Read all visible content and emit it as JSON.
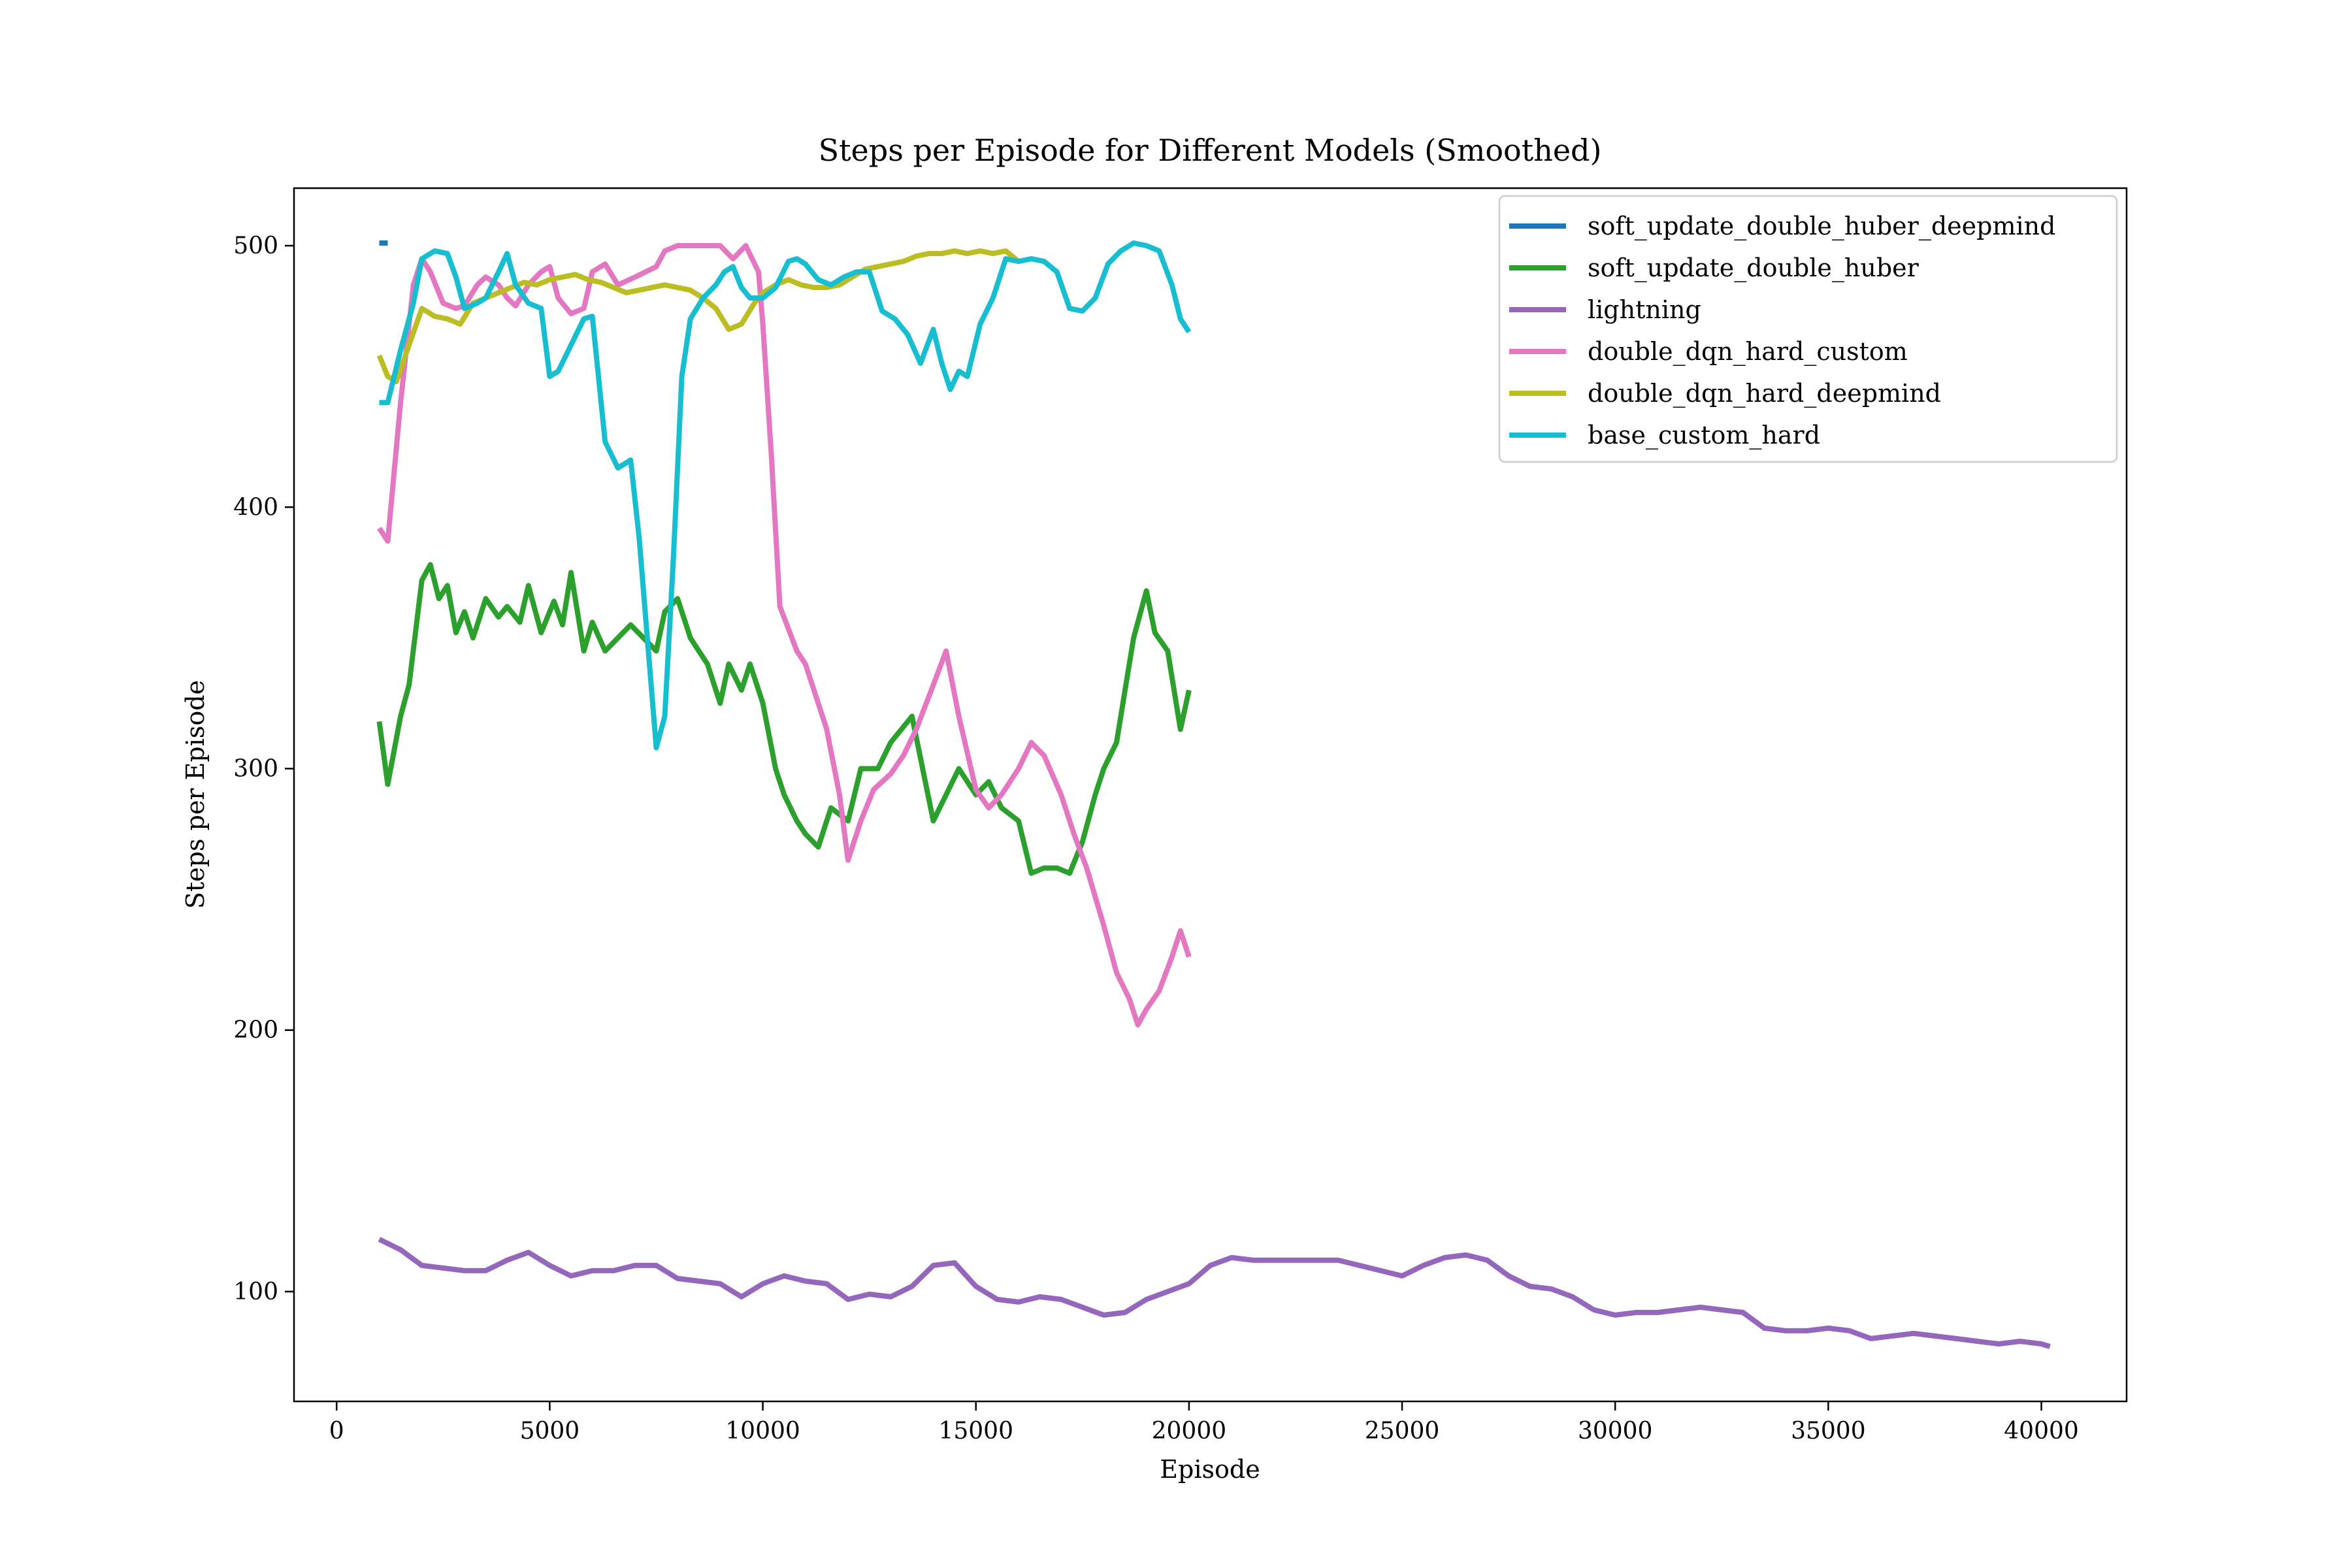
{
  "chart_data": {
    "type": "line",
    "title": "Steps per Episode for Different Models (Smoothed)",
    "xlabel": "Episode",
    "ylabel": "Steps per Episode",
    "xlim": [
      -1000,
      42000
    ],
    "ylim": [
      58,
      522
    ],
    "xticks": [
      0,
      5000,
      10000,
      15000,
      20000,
      25000,
      30000,
      35000,
      40000
    ],
    "yticks": [
      100,
      200,
      300,
      400,
      500
    ],
    "grid": false,
    "legend_position": "top-right",
    "series": [
      {
        "name": "soft_update_double_huber_deepmind",
        "color": "#1f77b4",
        "x": [
          1000,
          1200
        ],
        "y": [
          501,
          501
        ]
      },
      {
        "name": "soft_update_double_huber",
        "color": "#2ca02c",
        "x": [
          1000,
          1200,
          1500,
          1700,
          2000,
          2200,
          2400,
          2600,
          2800,
          3000,
          3200,
          3500,
          3800,
          4000,
          4300,
          4500,
          4800,
          5100,
          5300,
          5500,
          5800,
          6000,
          6300,
          6600,
          6900,
          7200,
          7500,
          7700,
          8000,
          8300,
          8500,
          8700,
          9000,
          9200,
          9500,
          9700,
          10000,
          10300,
          10500,
          10800,
          11000,
          11300,
          11600,
          12000,
          12300,
          12700,
          13000,
          13500,
          14000,
          14300,
          14600,
          15000,
          15300,
          15600,
          16000,
          16300,
          16600,
          16900,
          17200,
          17500,
          17800,
          18000,
          18300,
          18500,
          18700,
          19000,
          19200,
          19500,
          19800,
          20000
        ],
        "y": [
          318,
          294,
          320,
          332,
          372,
          378,
          365,
          370,
          352,
          360,
          350,
          365,
          358,
          362,
          356,
          370,
          352,
          364,
          355,
          375,
          345,
          356,
          345,
          350,
          355,
          350,
          345,
          360,
          365,
          350,
          345,
          340,
          325,
          340,
          330,
          340,
          325,
          300,
          290,
          280,
          275,
          270,
          285,
          280,
          300,
          300,
          310,
          320,
          280,
          290,
          300,
          290,
          295,
          285,
          280,
          260,
          262,
          262,
          260,
          272,
          290,
          300,
          310,
          330,
          350,
          368,
          352,
          345,
          315,
          330
        ]
      },
      {
        "name": "lightning",
        "color": "#9467bd",
        "x": [
          1000,
          1500,
          2000,
          3000,
          3500,
          4000,
          4500,
          5000,
          5500,
          6000,
          6500,
          7000,
          7500,
          8000,
          8500,
          9000,
          9500,
          10000,
          10500,
          11000,
          11500,
          12000,
          12500,
          13000,
          13500,
          14000,
          14500,
          15000,
          15500,
          16000,
          16500,
          17000,
          17500,
          18000,
          18500,
          19000,
          19500,
          20000,
          20500,
          21000,
          21500,
          22000,
          22500,
          23000,
          23500,
          24000,
          24500,
          25000,
          25500,
          26000,
          26500,
          27000,
          27500,
          28000,
          28500,
          29000,
          29500,
          30000,
          30500,
          31000,
          31500,
          32000,
          32500,
          33000,
          33500,
          34000,
          34500,
          35000,
          35500,
          36000,
          36500,
          37000,
          37500,
          38000,
          38500,
          39000,
          39500,
          40000,
          40200
        ],
        "y": [
          120,
          116,
          110,
          108,
          108,
          112,
          115,
          110,
          106,
          108,
          108,
          110,
          110,
          105,
          104,
          103,
          98,
          103,
          106,
          104,
          103,
          97,
          99,
          98,
          102,
          110,
          111,
          102,
          97,
          96,
          98,
          97,
          94,
          91,
          92,
          97,
          100,
          103,
          110,
          113,
          112,
          112,
          112,
          112,
          112,
          110,
          108,
          106,
          110,
          113,
          114,
          112,
          106,
          102,
          101,
          98,
          93,
          91,
          92,
          92,
          93,
          94,
          93,
          92,
          86,
          85,
          85,
          86,
          85,
          82,
          83,
          84,
          83,
          82,
          81,
          80,
          81,
          80,
          79
        ]
      },
      {
        "name": "double_dqn_hard_custom",
        "color": "#e377c2",
        "x": [
          1000,
          1200,
          1500,
          1800,
          2000,
          2200,
          2500,
          2800,
          3000,
          3300,
          3500,
          3800,
          4000,
          4200,
          4500,
          4800,
          5000,
          5200,
          5500,
          5800,
          6000,
          6300,
          6600,
          7000,
          7500,
          7700,
          8000,
          8500,
          9000,
          9300,
          9600,
          9900,
          10000,
          10200,
          10400,
          10800,
          11000,
          11300,
          11500,
          11800,
          12000,
          12300,
          12600,
          13000,
          13300,
          13600,
          14000,
          14300,
          14600,
          15000,
          15300,
          15600,
          16000,
          16300,
          16600,
          17000,
          17300,
          17600,
          18000,
          18300,
          18600,
          18800,
          19000,
          19300,
          19600,
          19800,
          20000
        ],
        "y": [
          392,
          387,
          440,
          485,
          495,
          490,
          478,
          476,
          477,
          485,
          488,
          485,
          480,
          477,
          485,
          490,
          492,
          480,
          474,
          476,
          490,
          493,
          485,
          488,
          492,
          498,
          500,
          500,
          500,
          495,
          500,
          490,
          470,
          420,
          362,
          345,
          340,
          325,
          315,
          290,
          265,
          280,
          292,
          298,
          305,
          315,
          332,
          345,
          320,
          292,
          285,
          290,
          300,
          310,
          305,
          290,
          275,
          262,
          240,
          222,
          212,
          202,
          208,
          215,
          228,
          238,
          228
        ]
      },
      {
        "name": "double_dqn_hard_deepmind",
        "color": "#bcbd22",
        "x": [
          1000,
          1200,
          1400,
          1700,
          2000,
          2300,
          2600,
          2900,
          3200,
          3500,
          3800,
          4100,
          4400,
          4700,
          5000,
          5300,
          5600,
          5900,
          6200,
          6500,
          6800,
          7100,
          7400,
          7700,
          8000,
          8300,
          8600,
          8900,
          9200,
          9500,
          9800,
          10000,
          10300,
          10600,
          10900,
          11200,
          11500,
          11800,
          12100,
          12400,
          12700,
          13000,
          13300,
          13600,
          13900,
          14200,
          14500,
          14800,
          15100,
          15400,
          15700,
          16000
        ],
        "y": [
          458,
          450,
          448,
          462,
          476,
          473,
          472,
          470,
          478,
          480,
          482,
          484,
          486,
          485,
          487,
          488,
          489,
          487,
          486,
          484,
          482,
          483,
          484,
          485,
          484,
          483,
          480,
          476,
          468,
          470,
          478,
          482,
          485,
          487,
          485,
          484,
          484,
          485,
          488,
          491,
          492,
          493,
          494,
          496,
          497,
          497,
          498,
          497,
          498,
          497,
          498,
          494
        ]
      },
      {
        "name": "base_custom_hard",
        "color": "#17becf",
        "x": [
          1000,
          1200,
          1500,
          1800,
          2000,
          2300,
          2600,
          2800,
          3000,
          3300,
          3500,
          3800,
          4000,
          4200,
          4500,
          4800,
          5000,
          5200,
          5500,
          5800,
          6000,
          6300,
          6600,
          6900,
          7100,
          7300,
          7500,
          7700,
          7900,
          8100,
          8300,
          8600,
          8900,
          9100,
          9300,
          9500,
          9700,
          10000,
          10300,
          10600,
          10800,
          11000,
          11300,
          11600,
          11900,
          12200,
          12500,
          12800,
          13100,
          13400,
          13700,
          14000,
          14200,
          14400,
          14600,
          14800,
          15100,
          15400,
          15700,
          16000,
          16300,
          16600,
          16900,
          17200,
          17500,
          17800,
          18100,
          18400,
          18700,
          19000,
          19300,
          19600,
          19800,
          20000
        ],
        "y": [
          440,
          440,
          460,
          478,
          495,
          498,
          497,
          488,
          476,
          478,
          480,
          490,
          497,
          485,
          478,
          476,
          450,
          452,
          462,
          472,
          473,
          425,
          415,
          418,
          388,
          348,
          308,
          320,
          380,
          450,
          472,
          480,
          485,
          490,
          492,
          484,
          480,
          480,
          484,
          494,
          495,
          493,
          487,
          485,
          488,
          490,
          490,
          475,
          472,
          466,
          455,
          468,
          455,
          445,
          452,
          450,
          470,
          480,
          495,
          494,
          495,
          494,
          490,
          476,
          475,
          480,
          493,
          498,
          501,
          500,
          498,
          485,
          472,
          467
        ]
      }
    ]
  }
}
